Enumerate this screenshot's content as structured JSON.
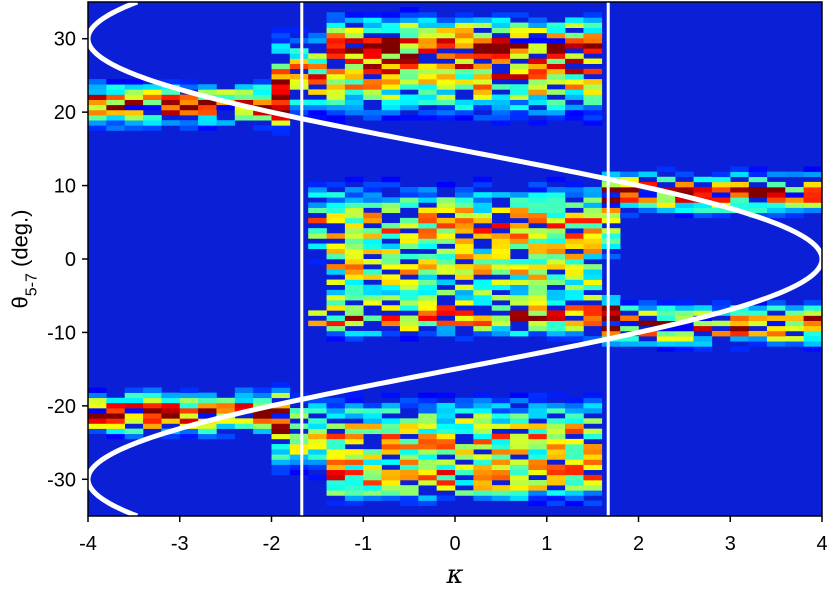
{
  "chart_data": {
    "type": "heatmap",
    "xlabel": "κ",
    "ylabel_main": "θ",
    "ylabel_sub": "5-7",
    "ylabel_unit": " (deg.)",
    "xlim": [
      -4,
      4
    ],
    "ylim": [
      -35,
      35
    ],
    "xticks": [
      -4,
      -3,
      -2,
      -1,
      0,
      1,
      2,
      3,
      4
    ],
    "yticks": [
      -30,
      -20,
      -10,
      0,
      10,
      20,
      30
    ],
    "grid": false,
    "colormap": "jet",
    "background_color": "#0a1fd6",
    "bands": [
      {
        "x0": -4.0,
        "x1": -1.7,
        "center": 21,
        "width": 3.2,
        "intensity": 0.75
      },
      {
        "x0": -1.9,
        "x1": 1.6,
        "center": 25,
        "width": 6.0,
        "intensity": 0.6
      },
      {
        "x0": -1.4,
        "x1": 1.6,
        "center": 30,
        "width": 3.5,
        "intensity": 0.5
      },
      {
        "x0": -1.5,
        "x1": 1.8,
        "center": 5,
        "width": 5.5,
        "intensity": 0.55
      },
      {
        "x0": -1.4,
        "x1": 1.7,
        "center": -2,
        "width": 5.0,
        "intensity": 0.45
      },
      {
        "x0": -1.6,
        "x1": 1.9,
        "center": -8,
        "width": 3.0,
        "intensity": 0.6
      },
      {
        "x0": 1.7,
        "x1": 4.0,
        "center": 9,
        "width": 3.0,
        "intensity": 0.75
      },
      {
        "x0": 1.7,
        "x1": 4.0,
        "center": -9,
        "width": 3.0,
        "intensity": 0.75
      },
      {
        "x0": -4.0,
        "x1": -1.7,
        "center": -21,
        "width": 3.2,
        "intensity": 0.75
      },
      {
        "x0": -1.9,
        "x1": 1.6,
        "center": -24,
        "width": 5.5,
        "intensity": 0.55
      },
      {
        "x0": -1.4,
        "x1": 1.6,
        "center": -30,
        "width": 3.5,
        "intensity": 0.5
      }
    ],
    "vertical_lines": [
      -1.67,
      1.67
    ],
    "curve": {
      "description": "boundary curve kappa = 4*cos(2*pi*theta/60), drawn in white",
      "amplitude": 4,
      "period_deg": 60,
      "theta_range": [
        -35,
        35
      ]
    },
    "overlay_color": "#ffffff"
  }
}
